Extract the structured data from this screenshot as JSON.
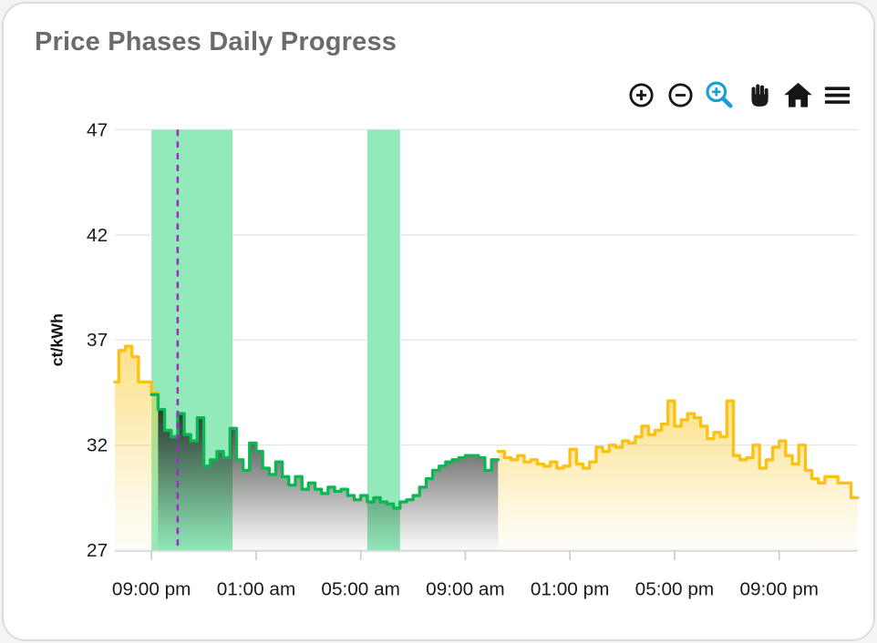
{
  "header": {
    "title": "Price Phases Daily Progress"
  },
  "toolbar": {
    "active_tool": "box-zoom",
    "icon_color": "#151515",
    "active_color": "#199fd6",
    "buttons": [
      "zoom-in",
      "zoom-out",
      "box-zoom",
      "pan",
      "reset-home",
      "menu"
    ]
  },
  "chart_data": {
    "type": "area",
    "title": "Price Phases Daily Progress",
    "xlabel": "",
    "ylabel": "ct/kWh",
    "ylim": [
      27,
      47
    ],
    "yticks": [
      27,
      32,
      37,
      42,
      47
    ],
    "xlim_hours": [
      19.6,
      48
    ],
    "xticks": [
      {
        "hour": 21,
        "label": "09:00 pm"
      },
      {
        "hour": 25,
        "label": "01:00 am"
      },
      {
        "hour": 29,
        "label": "05:00 am"
      },
      {
        "hour": 33,
        "label": "09:00 am"
      },
      {
        "hour": 37,
        "label": "01:00 pm"
      },
      {
        "hour": 41,
        "label": "05:00 pm"
      },
      {
        "hour": 45,
        "label": "09:00 pm"
      }
    ],
    "step_hours": 0.25,
    "grid": true,
    "legend": false,
    "units": "ct/kWh",
    "band_color": "#8ce9b6",
    "bands": [
      {
        "name": "cheap-window-1",
        "from_hour": 21.0,
        "to_hour": 24.1
      },
      {
        "name": "cheap-window-2",
        "from_hour": 29.25,
        "to_hour": 30.5
      }
    ],
    "current_time_hour": 22.0,
    "current_time_color": "#9d2bc8",
    "series": [
      {
        "name": "high-price-phase-evening",
        "color": "#fcc213",
        "fill": "yellow",
        "start_hour": 19.5,
        "values": [
          35.0,
          36.5,
          36.7,
          36.2,
          35.0,
          35.0,
          34.5
        ]
      },
      {
        "name": "low-price-phase",
        "color": "#0db653",
        "fill": "dark",
        "fill_gap_steps": [
          0
        ],
        "start_hour": 21.0,
        "values": [
          34.4,
          33.7,
          32.7,
          32.4,
          33.5,
          32.5,
          32.2,
          33.3,
          31.0,
          31.3,
          31.7,
          31.4,
          32.8,
          31.3,
          30.8,
          32.1,
          31.7,
          30.9,
          30.6,
          31.2,
          30.5,
          30.1,
          30.5,
          29.9,
          30.2,
          29.9,
          29.7,
          30.0,
          29.8,
          29.9,
          29.6,
          29.4,
          29.6,
          29.3,
          29.5,
          29.3,
          29.2,
          29.0,
          29.3,
          29.4,
          29.6,
          30.0,
          30.4,
          30.8,
          31.0,
          31.2,
          31.3,
          31.4,
          31.5,
          31.5,
          31.4,
          30.8,
          31.3
        ]
      },
      {
        "name": "high-price-phase-day",
        "color": "#fcc213",
        "fill": "yellow",
        "start_hour": 34.25,
        "values": [
          31.7,
          31.4,
          31.3,
          31.5,
          31.2,
          31.3,
          31.1,
          31.0,
          31.2,
          30.9,
          31.0,
          31.8,
          31.1,
          30.9,
          31.2,
          31.9,
          31.7,
          32.0,
          31.9,
          32.2,
          32.1,
          32.4,
          32.9,
          32.5,
          32.7,
          33.0,
          34.1,
          32.9,
          33.2,
          33.5,
          33.3,
          32.9,
          32.3,
          32.6,
          32.4,
          34.1,
          31.5,
          31.3,
          31.4,
          32.0,
          30.9,
          31.3,
          31.9,
          32.2,
          31.5,
          31.1,
          32.0,
          30.8,
          30.4,
          30.2,
          30.5,
          30.5,
          30.2,
          30.2,
          29.5
        ]
      }
    ]
  }
}
